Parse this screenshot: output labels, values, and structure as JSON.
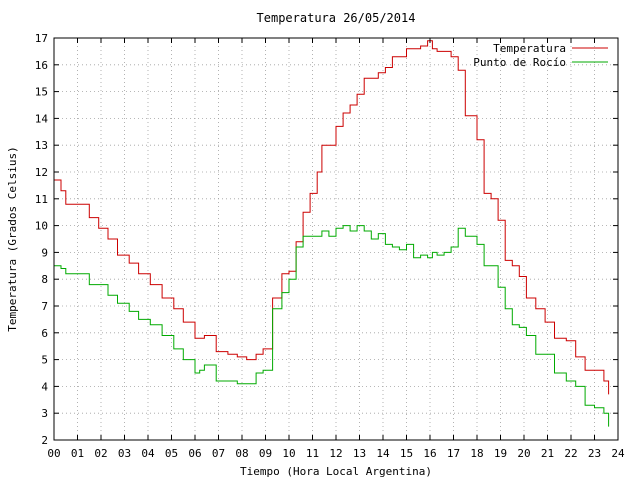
{
  "chart_data": {
    "type": "line",
    "title": "Temperatura 26/05/2014",
    "xlabel": "Tiempo (Hora Local Argentina)",
    "ylabel": "Temperatura (Grados Celsius)",
    "xlim": [
      0,
      24
    ],
    "ylim": [
      2,
      17
    ],
    "x_ticks": [
      "00",
      "01",
      "02",
      "03",
      "04",
      "05",
      "06",
      "07",
      "08",
      "09",
      "10",
      "11",
      "12",
      "13",
      "14",
      "15",
      "16",
      "17",
      "18",
      "19",
      "20",
      "21",
      "22",
      "23",
      "24"
    ],
    "y_ticks": [
      "2",
      "3",
      "4",
      "5",
      "6",
      "7",
      "8",
      "9",
      "10",
      "11",
      "12",
      "13",
      "14",
      "15",
      "16",
      "17"
    ],
    "grid": true,
    "legend_position": "top-right",
    "series": [
      {
        "name": "Temperatura",
        "color": "#cc0000",
        "x": [
          0.0,
          0.3,
          0.5,
          1.0,
          1.5,
          1.9,
          2.3,
          2.7,
          3.2,
          3.6,
          4.1,
          4.6,
          5.1,
          5.5,
          6.0,
          6.2,
          6.4,
          6.9,
          7.4,
          7.8,
          8.2,
          8.6,
          8.9,
          9.3,
          9.7,
          10.0,
          10.3,
          10.6,
          10.9,
          11.2,
          11.4,
          11.7,
          12.0,
          12.3,
          12.6,
          12.9,
          13.2,
          13.5,
          13.8,
          14.1,
          14.4,
          14.7,
          15.0,
          15.3,
          15.6,
          15.9,
          16.1,
          16.3,
          16.6,
          16.9,
          17.2,
          17.5,
          17.8,
          18.0,
          18.3,
          18.6,
          18.9,
          19.2,
          19.5,
          19.8,
          20.1,
          20.5,
          20.9,
          21.3,
          21.8,
          22.2,
          22.6,
          23.0,
          23.4,
          23.6
        ],
        "y": [
          11.7,
          11.3,
          10.8,
          10.8,
          10.3,
          9.9,
          9.5,
          8.9,
          8.6,
          8.2,
          7.8,
          7.3,
          6.9,
          6.4,
          5.8,
          5.8,
          5.9,
          5.3,
          5.2,
          5.1,
          5.0,
          5.2,
          5.4,
          7.3,
          8.2,
          8.3,
          9.4,
          10.5,
          11.2,
          12.0,
          13.0,
          13.0,
          13.7,
          14.2,
          14.5,
          14.9,
          15.5,
          15.5,
          15.7,
          15.9,
          16.3,
          16.3,
          16.6,
          16.6,
          16.7,
          16.9,
          16.6,
          16.5,
          16.5,
          16.3,
          15.8,
          14.1,
          14.1,
          13.2,
          11.2,
          11.0,
          10.2,
          8.7,
          8.5,
          8.1,
          7.3,
          6.9,
          6.4,
          5.8,
          5.7,
          5.1,
          4.6,
          4.6,
          4.2,
          3.7
        ]
      },
      {
        "name": "Punto de Rocío",
        "color": "#00aa00",
        "x": [
          0.0,
          0.3,
          0.5,
          1.0,
          1.5,
          1.9,
          2.3,
          2.7,
          3.2,
          3.6,
          4.1,
          4.6,
          5.1,
          5.5,
          6.0,
          6.2,
          6.4,
          6.9,
          7.4,
          7.8,
          8.2,
          8.6,
          8.9,
          9.3,
          9.7,
          10.0,
          10.3,
          10.6,
          10.9,
          11.2,
          11.4,
          11.7,
          12.0,
          12.3,
          12.6,
          12.9,
          13.2,
          13.5,
          13.8,
          14.1,
          14.4,
          14.7,
          15.0,
          15.3,
          15.6,
          15.9,
          16.1,
          16.3,
          16.6,
          16.9,
          17.2,
          17.5,
          17.8,
          18.0,
          18.3,
          18.6,
          18.9,
          19.2,
          19.5,
          19.8,
          20.1,
          20.5,
          20.9,
          21.3,
          21.8,
          22.2,
          22.6,
          23.0,
          23.4,
          23.6
        ],
        "y": [
          8.5,
          8.4,
          8.2,
          8.2,
          7.8,
          7.8,
          7.4,
          7.1,
          6.8,
          6.5,
          6.3,
          5.9,
          5.4,
          5.0,
          4.5,
          4.6,
          4.8,
          4.2,
          4.2,
          4.1,
          4.1,
          4.5,
          4.6,
          6.9,
          7.5,
          8.0,
          9.2,
          9.6,
          9.6,
          9.6,
          9.8,
          9.6,
          9.9,
          10.0,
          9.8,
          10.0,
          9.8,
          9.5,
          9.7,
          9.3,
          9.2,
          9.1,
          9.3,
          8.8,
          8.9,
          8.8,
          9.0,
          8.9,
          9.0,
          9.2,
          9.9,
          9.6,
          9.6,
          9.3,
          8.5,
          8.5,
          7.7,
          6.9,
          6.3,
          6.2,
          5.9,
          5.2,
          5.2,
          4.5,
          4.2,
          4.0,
          3.3,
          3.2,
          3.0,
          2.5
        ]
      }
    ]
  }
}
